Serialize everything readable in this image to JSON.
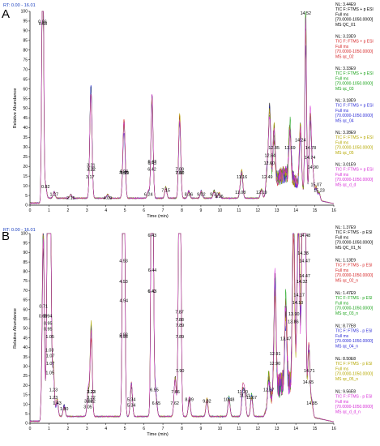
{
  "chart_data": [
    {
      "type": "line",
      "panel_label": "A",
      "rt_text": "RT: 0.00 - 16.01",
      "xlabel": "Time (min)",
      "ylabel": "Relative Abundance",
      "xlim": [
        0,
        16
      ],
      "ylim": [
        0,
        100
      ],
      "x_ticks": [
        0,
        1,
        2,
        3,
        4,
        5,
        6,
        7,
        8,
        9,
        10,
        11,
        12,
        13,
        14,
        15,
        16
      ],
      "y_ticks": [
        0,
        5,
        10,
        15,
        20,
        25,
        30,
        35,
        40,
        45,
        50,
        55,
        60,
        65,
        70,
        75,
        80,
        85,
        90,
        95,
        100
      ],
      "colors": [
        "#000000",
        "#d62728",
        "#1aa31a",
        "#2b2bd6",
        "#b5a800",
        "#d62ad6"
      ],
      "legend": [
        {
          "nl": "NL: 3.44E9",
          "tic": "TIC F: FTMS + p ESI",
          "ms": "Full ms",
          "range": "[70.0000-1050.0000]",
          "name": "MS QC_01"
        },
        {
          "nl": "NL: 3.23E9",
          "tic": "TIC F: FTMS + p ESI",
          "ms": "Full ms",
          "range": "[70.0000-1050.0000]",
          "name": "MS qc_02"
        },
        {
          "nl": "NL: 3.33E9",
          "tic": "TIC F: FTMS + p ESI",
          "ms": "Full ms",
          "range": "[70.0000-1050.0000]",
          "name": "MS qc_03"
        },
        {
          "nl": "NL: 3.18E9",
          "tic": "TIC F: FTMS + p ESI",
          "ms": "Full ms",
          "range": "[70.0000-1050.0000]",
          "name": "MS qc_04"
        },
        {
          "nl": "NL: 3.28E9",
          "tic": "TIC F: FTMS + p ESI",
          "ms": "Full ms",
          "range": "[70.0000-1050.0000]",
          "name": "MS qc_05"
        },
        {
          "nl": "NL: 3.01E9",
          "tic": "TIC F: FTMS + p ESI",
          "ms": "Full ms",
          "range": "[70.0000-1050.0000]",
          "name": "MS qc_d_d"
        }
      ],
      "peaks": [
        {
          "x": 0.66,
          "y": 93,
          "label": "0.66"
        },
        {
          "x": 0.68,
          "y": 92,
          "label": "0.68"
        },
        {
          "x": 0.82,
          "y": 8,
          "label": "0.82"
        },
        {
          "x": 1.27,
          "y": 4,
          "label": "1.27"
        },
        {
          "x": 2.15,
          "y": 2,
          "label": "2.15"
        },
        {
          "x": 3.17,
          "y": 13,
          "label": "3.17"
        },
        {
          "x": 3.21,
          "y": 19,
          "label": "3.21"
        },
        {
          "x": 3.22,
          "y": 17,
          "label": "3.22"
        },
        {
          "x": 3.22,
          "y": 17,
          "label": "3.22"
        },
        {
          "x": 4.09,
          "y": 2,
          "label": "4.09"
        },
        {
          "x": 4.93,
          "y": 15,
          "label": "4.93"
        },
        {
          "x": 4.94,
          "y": 16,
          "label": "4.94"
        },
        {
          "x": 4.99,
          "y": 15,
          "label": "4.99"
        },
        {
          "x": 6.24,
          "y": 4,
          "label": "6.24"
        },
        {
          "x": 6.42,
          "y": 17,
          "label": "6.42"
        },
        {
          "x": 6.43,
          "y": 21,
          "label": "6.43"
        },
        {
          "x": 6.43,
          "y": 20,
          "label": "6.43"
        },
        {
          "x": 7.15,
          "y": 6,
          "label": "7.15"
        },
        {
          "x": 7.88,
          "y": 17,
          "label": "7.88"
        },
        {
          "x": 7.87,
          "y": 15,
          "label": "7.87"
        },
        {
          "x": 7.9,
          "y": 15,
          "label": "7.90"
        },
        {
          "x": 8.36,
          "y": 4,
          "label": "8.36"
        },
        {
          "x": 9.02,
          "y": 4,
          "label": "9.02"
        },
        {
          "x": 9.7,
          "y": 4,
          "label": "9.70"
        },
        {
          "x": 9.96,
          "y": 3,
          "label": "9.96"
        },
        {
          "x": 11.08,
          "y": 5,
          "label": "11.08"
        },
        {
          "x": 11.16,
          "y": 13,
          "label": "11.16"
        },
        {
          "x": 12.19,
          "y": 5,
          "label": "12.19"
        },
        {
          "x": 12.49,
          "y": 13,
          "label": "12.49"
        },
        {
          "x": 12.6,
          "y": 20,
          "label": "12.60"
        },
        {
          "x": 12.64,
          "y": 24,
          "label": "12.64"
        },
        {
          "x": 12.85,
          "y": 28,
          "label": "12.85"
        },
        {
          "x": 13.69,
          "y": 28,
          "label": "13.69"
        },
        {
          "x": 14.24,
          "y": 32,
          "label": "14.24"
        },
        {
          "x": 14.52,
          "y": 100,
          "label": "14.52"
        },
        {
          "x": 14.74,
          "y": 23,
          "label": "14.74"
        },
        {
          "x": 14.78,
          "y": 28,
          "label": "14.78"
        },
        {
          "x": 14.9,
          "y": 18,
          "label": "14.90"
        },
        {
          "x": 15.07,
          "y": 9,
          "label": "15.07"
        },
        {
          "x": 15.23,
          "y": 6,
          "label": "15.23"
        }
      ]
    },
    {
      "type": "line",
      "panel_label": "B",
      "rt_text": "RT: 0.00 - 16.01",
      "xlabel": "Time (min)",
      "ylabel": "Relative Abundance",
      "xlim": [
        0,
        16
      ],
      "ylim": [
        0,
        100
      ],
      "x_ticks": [
        0,
        1,
        2,
        3,
        4,
        5,
        6,
        7,
        8,
        9,
        10,
        11,
        12,
        13,
        14,
        15,
        16
      ],
      "y_ticks": [
        0,
        5,
        10,
        15,
        20,
        25,
        30,
        35,
        40,
        45,
        50,
        55,
        60,
        65,
        70,
        75,
        80,
        85,
        90,
        95,
        100
      ],
      "colors": [
        "#000000",
        "#d62728",
        "#1aa31a",
        "#2b2bd6",
        "#b5a800",
        "#d62ad6"
      ],
      "legend": [
        {
          "nl": "NL: 1.37E9",
          "tic": "TIC F: FTMS - p ESI",
          "ms": "Full ms",
          "range": "[70.0000-1050.0000]",
          "name": "MS QC_01_N"
        },
        {
          "nl": "NL: 1.13E9",
          "tic": "TIC F: FTMS - p ESI",
          "ms": "Full ms",
          "range": "[70.0000-1050.0000]",
          "name": "MS qc_02_n"
        },
        {
          "nl": "NL: 1.47E9",
          "tic": "TIC F: FTMS - p ESI",
          "ms": "Full ms",
          "range": "[70.0000-1050.0000]",
          "name": "MS qc_03_n"
        },
        {
          "nl": "NL: 8.77E8",
          "tic": "TIC F: FTMS - p ESI",
          "ms": "Full ms",
          "range": "[70.0000-1050.0000]",
          "name": "MS qc_04_n"
        },
        {
          "nl": "NL: 8.50E8",
          "tic": "TIC F: FTMS - p ESI",
          "ms": "Full ms",
          "range": "[70.0000-1050.0000]",
          "name": "MS qc_05_n"
        },
        {
          "nl": "NL: 9.56E8",
          "tic": "TIC F: FTMS - p ESI",
          "ms": "Full ms",
          "range": "[70.0000-1050.0000]",
          "name": "MS qc_d_d_n"
        }
      ],
      "peaks": [
        {
          "x": 0.71,
          "y": 60,
          "label": "0.71"
        },
        {
          "x": 0.69,
          "y": 55,
          "label": "0.69"
        },
        {
          "x": 0.94,
          "y": 55,
          "label": "0.94"
        },
        {
          "x": 0.95,
          "y": 51,
          "label": "0.95"
        },
        {
          "x": 0.95,
          "y": 48,
          "label": "0.95"
        },
        {
          "x": 1.05,
          "y": 44,
          "label": "1.05"
        },
        {
          "x": 1.03,
          "y": 37,
          "label": "1.03"
        },
        {
          "x": 1.07,
          "y": 34,
          "label": "1.07"
        },
        {
          "x": 1.07,
          "y": 30,
          "label": "1.07"
        },
        {
          "x": 1.05,
          "y": 25,
          "label": "1.05"
        },
        {
          "x": 1.23,
          "y": 16,
          "label": "1.23"
        },
        {
          "x": 1.23,
          "y": 12,
          "label": "1.23"
        },
        {
          "x": 1.43,
          "y": 9,
          "label": "1.43"
        },
        {
          "x": 1.8,
          "y": 6,
          "label": "1.80"
        },
        {
          "x": 3.08,
          "y": 10,
          "label": "3.08"
        },
        {
          "x": 3.05,
          "y": 7,
          "label": "3.05"
        },
        {
          "x": 3.22,
          "y": 15,
          "label": "3.22"
        },
        {
          "x": 3.23,
          "y": 15,
          "label": "3.23"
        },
        {
          "x": 3.22,
          "y": 12,
          "label": "3.22"
        },
        {
          "x": 3.22,
          "y": 10,
          "label": "3.22"
        },
        {
          "x": 4.93,
          "y": 84,
          "label": "4.93"
        },
        {
          "x": 4.93,
          "y": 73,
          "label": "4.93"
        },
        {
          "x": 4.94,
          "y": 63,
          "label": "4.94"
        },
        {
          "x": 4.93,
          "y": 45,
          "label": "4.93"
        },
        {
          "x": 4.93,
          "y": 44,
          "label": "4.93"
        },
        {
          "x": 5.34,
          "y": 11,
          "label": "5.34"
        },
        {
          "x": 5.34,
          "y": 8,
          "label": "5.34"
        },
        {
          "x": 6.43,
          "y": 100,
          "label": "6.43"
        },
        {
          "x": 6.44,
          "y": 79,
          "label": "6.44"
        },
        {
          "x": 6.43,
          "y": 68,
          "label": "6.43"
        },
        {
          "x": 6.43,
          "y": 68,
          "label": "6.43"
        },
        {
          "x": 6.55,
          "y": 16,
          "label": "6.55"
        },
        {
          "x": 6.65,
          "y": 9,
          "label": "6.65"
        },
        {
          "x": 7.62,
          "y": 9,
          "label": "7.62"
        },
        {
          "x": 7.66,
          "y": 15,
          "label": "7.66"
        },
        {
          "x": 7.87,
          "y": 57,
          "label": "7.87"
        },
        {
          "x": 7.88,
          "y": 53,
          "label": "7.88"
        },
        {
          "x": 7.89,
          "y": 50,
          "label": "7.89"
        },
        {
          "x": 7.89,
          "y": 44,
          "label": "7.89"
        },
        {
          "x": 7.9,
          "y": 26,
          "label": "7.90"
        },
        {
          "x": 8.39,
          "y": 11,
          "label": "8.39"
        },
        {
          "x": 9.32,
          "y": 10,
          "label": "9.32"
        },
        {
          "x": 10.48,
          "y": 11,
          "label": "10.48"
        },
        {
          "x": 11.2,
          "y": 15,
          "label": "11.20"
        },
        {
          "x": 11.31,
          "y": 13,
          "label": "11.31"
        },
        {
          "x": 11.67,
          "y": 12,
          "label": "11.67"
        },
        {
          "x": 12.57,
          "y": 16,
          "label": "12.57"
        },
        {
          "x": 12.9,
          "y": 30,
          "label": "12.90"
        },
        {
          "x": 12.91,
          "y": 35,
          "label": "12.91"
        },
        {
          "x": 13.47,
          "y": 43,
          "label": "13.47"
        },
        {
          "x": 13.86,
          "y": 52,
          "label": "13.86"
        },
        {
          "x": 13.9,
          "y": 56,
          "label": "13.90"
        },
        {
          "x": 14.1,
          "y": 62,
          "label": "14.10"
        },
        {
          "x": 14.17,
          "y": 66,
          "label": "14.17"
        },
        {
          "x": 14.32,
          "y": 73,
          "label": "14.32"
        },
        {
          "x": 14.38,
          "y": 88,
          "label": "14.38"
        },
        {
          "x": 14.47,
          "y": 84,
          "label": "14.47"
        },
        {
          "x": 14.47,
          "y": 76,
          "label": "14.47"
        },
        {
          "x": 14.48,
          "y": 100,
          "label": "14.48"
        },
        {
          "x": 14.71,
          "y": 26,
          "label": "14.71"
        },
        {
          "x": 14.65,
          "y": 20,
          "label": "14.65"
        },
        {
          "x": 14.85,
          "y": 9,
          "label": "14.85"
        }
      ]
    }
  ]
}
